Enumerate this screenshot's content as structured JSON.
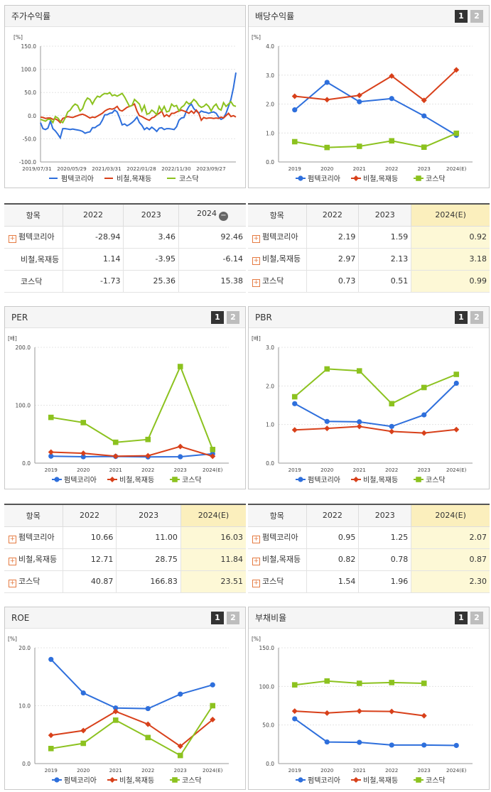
{
  "panels": {
    "stock": {
      "title": "주가수익률",
      "has_tabs": false
    },
    "dividend": {
      "title": "배당수익률",
      "tabs": [
        "1",
        "2"
      ]
    },
    "per": {
      "title": "PER",
      "tabs": [
        "1",
        "2"
      ]
    },
    "pbr": {
      "title": "PBR",
      "tabs": [
        "1",
        "2"
      ]
    },
    "roe": {
      "title": "ROE",
      "tabs": [
        "1",
        "2"
      ]
    },
    "debt": {
      "title": "부채비율",
      "tabs": [
        "1",
        "2"
      ]
    }
  },
  "colors": {
    "company": "#2e6fdc",
    "industry": "#d8401a",
    "kosdaq": "#8cc21f"
  },
  "tables": {
    "stock": {
      "headers": [
        "항목",
        "2022",
        "2023",
        "2024"
      ],
      "rows": [
        {
          "label": "펌텍코리아",
          "plus": true,
          "values": [
            "-28.94",
            "3.46",
            "92.46"
          ]
        },
        {
          "label": "비철,목재등",
          "plus": false,
          "values": [
            "1.14",
            "-3.95",
            "-6.14"
          ]
        },
        {
          "label": "코스닥",
          "plus": false,
          "values": [
            "-1.73",
            "25.36",
            "15.38"
          ]
        }
      ]
    },
    "dividend": {
      "headers": [
        "항목",
        "2022",
        "2023",
        "2024(E)"
      ],
      "rows": [
        {
          "label": "펌텍코리아",
          "plus": true,
          "values": [
            "2.19",
            "1.59",
            "0.92"
          ]
        },
        {
          "label": "비철,목재등",
          "plus": true,
          "values": [
            "2.97",
            "2.13",
            "3.18"
          ]
        },
        {
          "label": "코스닥",
          "plus": true,
          "values": [
            "0.73",
            "0.51",
            "0.99"
          ]
        }
      ]
    },
    "per": {
      "headers": [
        "항목",
        "2022",
        "2023",
        "2024(E)"
      ],
      "rows": [
        {
          "label": "펌텍코리아",
          "plus": true,
          "values": [
            "10.66",
            "11.00",
            "16.03"
          ]
        },
        {
          "label": "비철,목재등",
          "plus": true,
          "values": [
            "12.71",
            "28.75",
            "11.84"
          ]
        },
        {
          "label": "코스닥",
          "plus": true,
          "values": [
            "40.87",
            "166.83",
            "23.51"
          ]
        }
      ]
    },
    "pbr": {
      "headers": [
        "항목",
        "2022",
        "2023",
        "2024(E)"
      ],
      "rows": [
        {
          "label": "펌텍코리아",
          "plus": true,
          "values": [
            "0.95",
            "1.25",
            "2.07"
          ]
        },
        {
          "label": "비철,목재등",
          "plus": true,
          "values": [
            "0.82",
            "0.78",
            "0.87"
          ]
        },
        {
          "label": "코스닥",
          "plus": true,
          "values": [
            "1.54",
            "1.96",
            "2.30"
          ]
        }
      ]
    }
  },
  "chart_data": [
    {
      "id": "stock",
      "type": "line",
      "unit": "[%]",
      "yticks": [
        "150.0",
        "100.0",
        "50.0",
        "0.0",
        "-50.0",
        "-100.0"
      ],
      "ylim": [
        -100,
        150
      ],
      "xticks": [
        "2019/07/31",
        "2020/05/29",
        "2021/03/31",
        "2022/01/28",
        "2022/11/30",
        "2023/09/27"
      ],
      "n": 80,
      "series": [
        {
          "name": "펌텍코리아",
          "key": "company",
          "values": [
            -15,
            -28,
            -30,
            -27,
            -12,
            -28,
            -33,
            -40,
            -48,
            -28,
            -28,
            -29,
            -30,
            -29,
            -30,
            -31,
            -32,
            -34,
            -38,
            -36,
            -35,
            -26,
            -26,
            -22,
            -19,
            -10,
            2,
            2,
            5,
            6,
            12,
            8,
            -5,
            -20,
            -18,
            -22,
            -19,
            -15,
            -10,
            -3,
            -15,
            -21,
            -30,
            -26,
            -30,
            -25,
            -29,
            -34,
            -27,
            -26,
            -30,
            -28,
            -28,
            -29,
            -30,
            -24,
            -10,
            -5,
            -4,
            10,
            20,
            25,
            15,
            10,
            5,
            10,
            8,
            7,
            5,
            7,
            8,
            5,
            -3,
            -8,
            -5,
            5,
            20,
            35,
            60,
            93
          ]
        },
        {
          "name": "비철,목재등",
          "key": "industry",
          "values": [
            -3,
            -4,
            -6,
            -5,
            -5,
            -8,
            -7,
            -10,
            -15,
            -6,
            -4,
            -2,
            -3,
            -4,
            -2,
            0,
            2,
            3,
            1,
            -2,
            -5,
            -3,
            -4,
            -1,
            2,
            5,
            10,
            13,
            15,
            14,
            16,
            20,
            12,
            10,
            14,
            18,
            20,
            22,
            25,
            10,
            0,
            -2,
            -5,
            -8,
            -10,
            -5,
            -3,
            2,
            5,
            10,
            -2,
            2,
            -2,
            5,
            5,
            8,
            10,
            12,
            10,
            8,
            5,
            10,
            5,
            12,
            5,
            -10,
            -4,
            -6,
            -5,
            -5,
            -6,
            -5,
            -6,
            -3,
            -5,
            0,
            5,
            -2,
            0,
            -3
          ]
        },
        {
          "name": "코스닥",
          "key": "kosdaq",
          "values": [
            -8,
            -10,
            -12,
            -8,
            -8,
            -15,
            -2,
            -5,
            -12,
            -15,
            -5,
            8,
            12,
            20,
            25,
            22,
            10,
            15,
            30,
            38,
            35,
            25,
            35,
            42,
            40,
            45,
            48,
            47,
            50,
            43,
            45,
            42,
            45,
            48,
            40,
            30,
            20,
            22,
            35,
            30,
            25,
            10,
            22,
            3,
            5,
            12,
            8,
            2,
            20,
            10,
            20,
            8,
            10,
            25,
            20,
            22,
            10,
            18,
            22,
            30,
            25,
            28,
            35,
            30,
            22,
            18,
            20,
            25,
            20,
            10,
            20,
            25,
            15,
            12,
            28,
            20,
            25,
            30,
            22,
            20
          ]
        }
      ]
    },
    {
      "id": "dividend",
      "type": "line",
      "unit": "[%]",
      "yticks": [
        "4.0",
        "3.0",
        "2.0",
        "1.0",
        "0.0"
      ],
      "ylim": [
        0,
        4
      ],
      "categories": [
        "2019",
        "2020",
        "2021",
        "2022",
        "2023",
        "2024(E)"
      ],
      "series": [
        {
          "name": "펌텍코리아",
          "key": "company",
          "marker": "circle",
          "values": [
            1.8,
            2.75,
            2.08,
            2.19,
            1.59,
            0.92
          ]
        },
        {
          "name": "비철,목재등",
          "key": "industry",
          "marker": "diamond",
          "values": [
            2.27,
            2.15,
            2.3,
            2.97,
            2.13,
            3.18
          ]
        },
        {
          "name": "코스닥",
          "key": "kosdaq",
          "marker": "square",
          "values": [
            0.7,
            0.5,
            0.54,
            0.73,
            0.51,
            0.99
          ]
        }
      ]
    },
    {
      "id": "per",
      "type": "line",
      "unit": "[배]",
      "yticks": [
        "200.0",
        "100.0",
        "0.0"
      ],
      "ylim": [
        0,
        200
      ],
      "categories": [
        "2019",
        "2020",
        "2021",
        "2022",
        "2023",
        "2024(E)"
      ],
      "series": [
        {
          "name": "펌텍코리아",
          "key": "company",
          "marker": "circle",
          "values": [
            12,
            11,
            11.5,
            10.66,
            11.0,
            16.03
          ]
        },
        {
          "name": "비철,목재등",
          "key": "industry",
          "marker": "diamond",
          "values": [
            19,
            17,
            12,
            12.71,
            28.75,
            11.84
          ]
        },
        {
          "name": "코스닥",
          "key": "kosdaq",
          "marker": "square",
          "values": [
            79,
            70,
            36,
            40.87,
            166.83,
            23.51
          ]
        }
      ]
    },
    {
      "id": "pbr",
      "type": "line",
      "unit": "[배]",
      "yticks": [
        "3.0",
        "2.0",
        "1.0",
        "0.0"
      ],
      "ylim": [
        0,
        3
      ],
      "categories": [
        "2019",
        "2020",
        "2021",
        "2022",
        "2023",
        "2024(E)"
      ],
      "series": [
        {
          "name": "펌텍코리아",
          "key": "company",
          "marker": "circle",
          "values": [
            1.54,
            1.08,
            1.07,
            0.95,
            1.25,
            2.07
          ]
        },
        {
          "name": "비철,목재등",
          "key": "industry",
          "marker": "diamond",
          "values": [
            0.86,
            0.9,
            0.95,
            0.82,
            0.78,
            0.87
          ]
        },
        {
          "name": "코스닥",
          "key": "kosdaq",
          "marker": "square",
          "values": [
            1.72,
            2.44,
            2.39,
            1.54,
            1.96,
            2.3
          ]
        }
      ]
    },
    {
      "id": "roe",
      "type": "line",
      "unit": "[%]",
      "yticks": [
        "20.0",
        "10.0",
        "0.0"
      ],
      "ylim": [
        0,
        20
      ],
      "categories": [
        "2019",
        "2020",
        "2021",
        "2022",
        "2023",
        "2024(E)"
      ],
      "series": [
        {
          "name": "펌텍코리아",
          "key": "company",
          "marker": "circle",
          "values": [
            18.0,
            12.2,
            9.6,
            9.5,
            12.0,
            13.6
          ]
        },
        {
          "name": "비철,목재등",
          "key": "industry",
          "marker": "diamond",
          "values": [
            4.9,
            5.7,
            9.0,
            6.8,
            3.0,
            7.6
          ]
        },
        {
          "name": "코스닥",
          "key": "kosdaq",
          "marker": "square",
          "values": [
            2.6,
            3.5,
            7.5,
            4.5,
            1.4,
            10.0
          ]
        }
      ]
    },
    {
      "id": "debt",
      "type": "line",
      "unit": "[%]",
      "yticks": [
        "150.0",
        "100.0",
        "50.0",
        "0.0"
      ],
      "ylim": [
        0,
        150
      ],
      "categories": [
        "2019",
        "2020",
        "2021",
        "2022",
        "2023",
        "2024(E)"
      ],
      "series": [
        {
          "name": "펌텍코리아",
          "key": "company",
          "marker": "circle",
          "values": [
            58,
            28,
            27.5,
            24,
            24,
            23.5
          ]
        },
        {
          "name": "비철,목재등",
          "key": "industry",
          "marker": "diamond",
          "values": [
            68,
            65.5,
            68,
            67.5,
            62,
            null
          ]
        },
        {
          "name": "코스닥",
          "key": "kosdaq",
          "marker": "square",
          "values": [
            102,
            107,
            104,
            105,
            104,
            null
          ]
        }
      ]
    }
  ]
}
